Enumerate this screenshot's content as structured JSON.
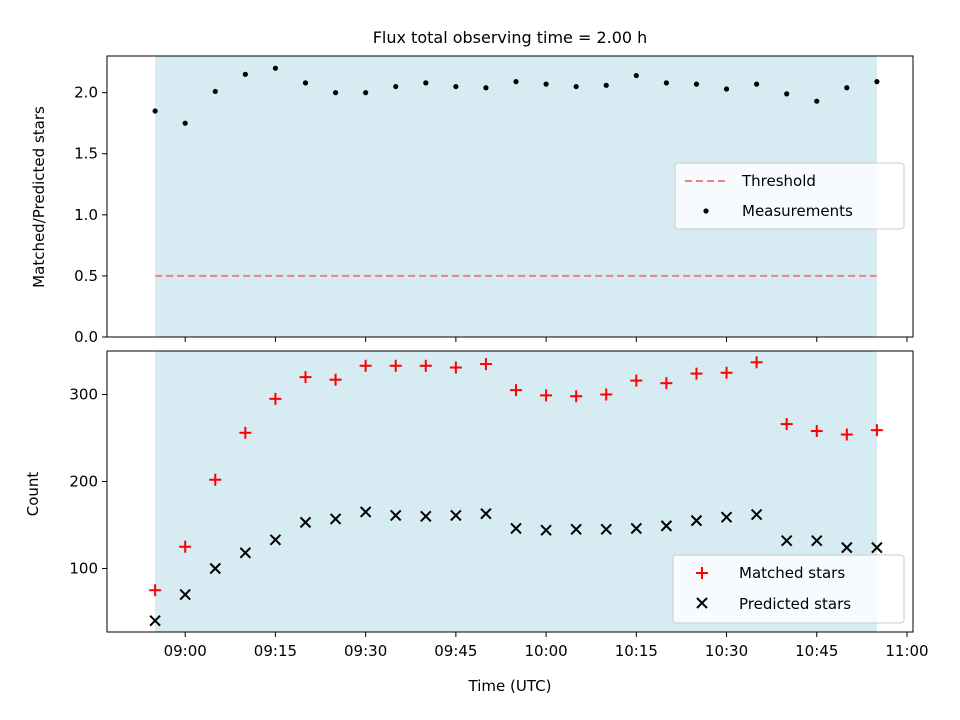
{
  "chart_data": [
    {
      "type": "scatter",
      "title": "Flux total observing time = 2.00 h",
      "ylabel": "Matched/Predicted stars",
      "xlim": [
        "08:47",
        "11:01"
      ],
      "ylim": [
        0,
        2.3
      ],
      "yticks": [
        0.0,
        0.5,
        1.0,
        1.5,
        2.0
      ],
      "ytick_labels": [
        "0.0",
        "0.5",
        "1.0",
        "1.5",
        "2.0"
      ],
      "shaded_region": {
        "x": [
          "08:55",
          "10:55"
        ],
        "color": "#add8e6"
      },
      "threshold": {
        "name": "Threshold",
        "y": 0.5,
        "x": [
          "08:55",
          "10:55"
        ],
        "color": "#f08080",
        "style": "dashed"
      },
      "series": [
        {
          "name": "Measurements",
          "color": "#000000",
          "marker": "dot",
          "x": [
            "08:55",
            "09:00",
            "09:05",
            "09:10",
            "09:15",
            "09:20",
            "09:25",
            "09:30",
            "09:35",
            "09:40",
            "09:45",
            "09:50",
            "09:55",
            "10:00",
            "10:05",
            "10:10",
            "10:15",
            "10:20",
            "10:25",
            "10:30",
            "10:35",
            "10:40",
            "10:45",
            "10:50",
            "10:55"
          ],
          "y": [
            1.85,
            1.75,
            2.01,
            2.15,
            2.2,
            2.08,
            2.0,
            2.0,
            2.05,
            2.08,
            2.05,
            2.04,
            2.09,
            2.07,
            2.05,
            2.06,
            2.14,
            2.08,
            2.07,
            2.03,
            2.07,
            1.99,
            1.93,
            2.04,
            2.09
          ]
        }
      ],
      "legend": {
        "position": "center-right",
        "entries": [
          "Threshold",
          "Measurements"
        ]
      }
    },
    {
      "type": "scatter",
      "xlabel": "Time (UTC)",
      "ylabel": "Count",
      "xlim": [
        "08:47",
        "11:01"
      ],
      "ylim": [
        27,
        350
      ],
      "yticks": [
        100,
        200,
        300
      ],
      "ytick_labels": [
        "100",
        "200",
        "300"
      ],
      "xtick_labels": [
        "09:00",
        "09:15",
        "09:30",
        "09:45",
        "10:00",
        "10:15",
        "10:30",
        "10:45",
        "11:00"
      ],
      "shaded_region": {
        "x": [
          "08:55",
          "10:55"
        ],
        "color": "#add8e6"
      },
      "series": [
        {
          "name": "Matched stars",
          "color": "#ff0000",
          "marker": "plus",
          "x": [
            "08:55",
            "09:00",
            "09:05",
            "09:10",
            "09:15",
            "09:20",
            "09:25",
            "09:30",
            "09:35",
            "09:40",
            "09:45",
            "09:50",
            "09:55",
            "10:00",
            "10:05",
            "10:10",
            "10:15",
            "10:20",
            "10:25",
            "10:30",
            "10:35",
            "10:40",
            "10:45",
            "10:50",
            "10:55"
          ],
          "y": [
            75,
            125,
            202,
            256,
            295,
            320,
            317,
            333,
            333,
            333,
            331,
            335,
            305,
            299,
            298,
            300,
            316,
            313,
            324,
            325,
            337,
            266,
            258,
            254,
            259
          ]
        },
        {
          "name": "Predicted stars",
          "color": "#000000",
          "marker": "x",
          "x": [
            "08:55",
            "09:00",
            "09:05",
            "09:10",
            "09:15",
            "09:20",
            "09:25",
            "09:30",
            "09:35",
            "09:40",
            "09:45",
            "09:50",
            "09:55",
            "10:00",
            "10:05",
            "10:10",
            "10:15",
            "10:20",
            "10:25",
            "10:30",
            "10:35",
            "10:40",
            "10:45",
            "10:50",
            "10:55"
          ],
          "y": [
            40,
            70,
            100,
            118,
            133,
            153,
            157,
            165,
            161,
            160,
            161,
            163,
            146,
            144,
            145,
            145,
            146,
            149,
            155,
            159,
            162,
            132,
            132,
            124,
            124
          ]
        }
      ],
      "legend": {
        "position": "lower-right",
        "entries": [
          "Matched stars",
          "Predicted stars"
        ]
      }
    }
  ]
}
